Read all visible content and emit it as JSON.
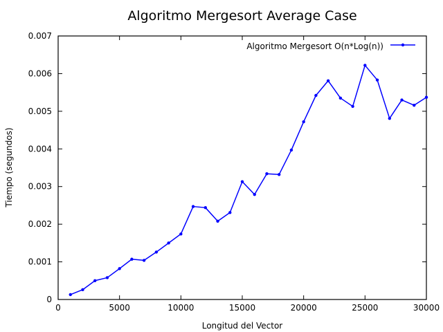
{
  "chart_data": {
    "type": "line",
    "title": "Algoritmo Mergesort Average Case",
    "xlabel": "Longitud del Vector",
    "ylabel": "Tiempo (segundos)",
    "xlim": [
      0,
      30000
    ],
    "ylim": [
      0,
      0.007
    ],
    "xticks": [
      "0",
      "5000",
      "10000",
      "15000",
      "20000",
      "25000",
      "30000"
    ],
    "yticks": [
      "0",
      "0.001",
      "0.002",
      "0.003",
      "0.004",
      "0.005",
      "0.006",
      "0.007"
    ],
    "grid": false,
    "legend_position": "top-right",
    "series": [
      {
        "name": "Algoritmo Mergesort O(n*Log(n))",
        "color": "#0000ff",
        "marker": "point",
        "x": [
          1000,
          2000,
          3000,
          4000,
          5000,
          6000,
          7000,
          8000,
          9000,
          10000,
          11000,
          12000,
          13000,
          14000,
          15000,
          16000,
          17000,
          18000,
          19000,
          20000,
          21000,
          22000,
          23000,
          24000,
          25000,
          26000,
          27000,
          28000,
          29000,
          30000
        ],
        "values": [
          0.00013,
          0.00026,
          0.0005,
          0.00058,
          0.00082,
          0.00107,
          0.00104,
          0.00126,
          0.0015,
          0.00174,
          0.00247,
          0.00244,
          0.00208,
          0.00231,
          0.00313,
          0.00279,
          0.00334,
          0.00332,
          0.00397,
          0.00472,
          0.00542,
          0.00581,
          0.00535,
          0.00513,
          0.00622,
          0.00583,
          0.00481,
          0.0053,
          0.00516,
          0.00537
        ]
      }
    ]
  }
}
